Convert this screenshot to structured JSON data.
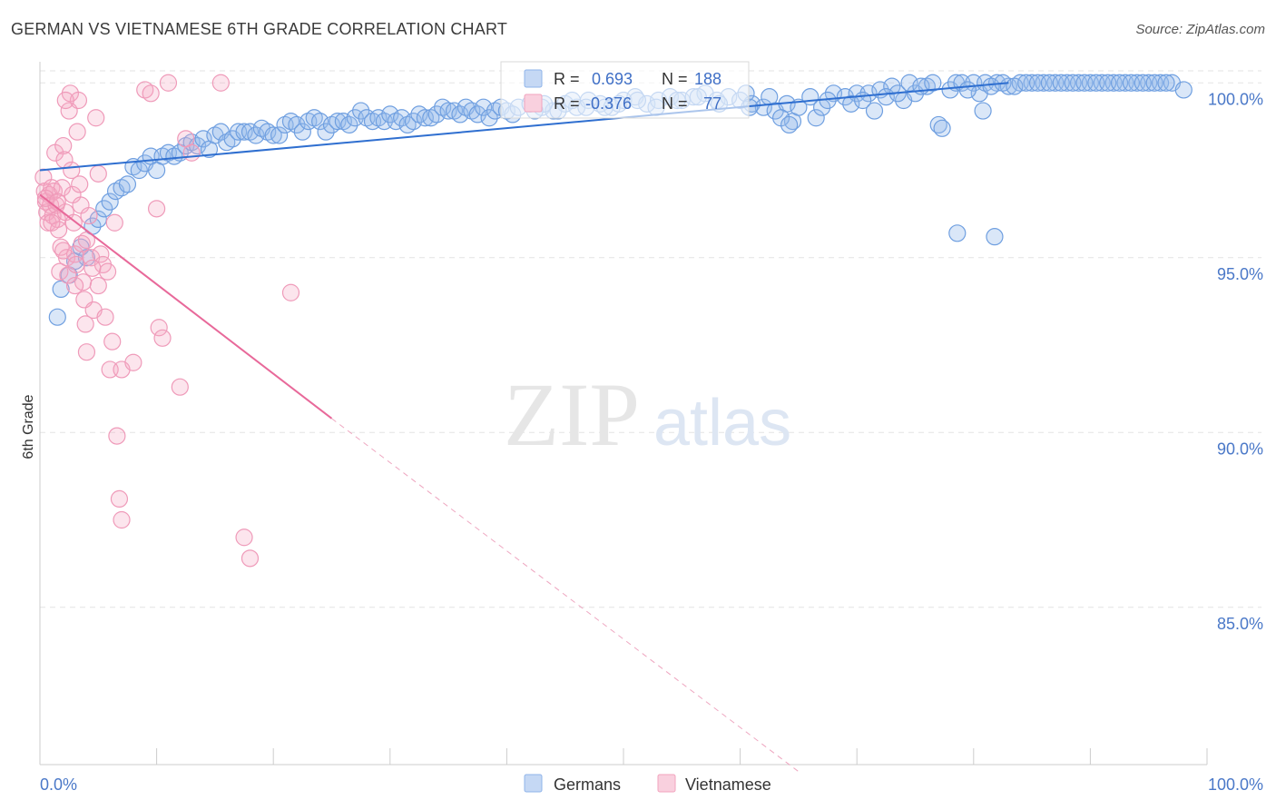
{
  "title": "GERMAN VS VIETNAMESE 6TH GRADE CORRELATION CHART",
  "source": "Source: ZipAtlas.com",
  "watermark": {
    "zip": "ZIP",
    "atlas": "atlas"
  },
  "legend_box": {
    "rows": [
      {
        "r_label": "R =",
        "r_value": "0.693",
        "n_label": "N =",
        "n_value": "188",
        "color": "#8fb4ea"
      },
      {
        "r_label": "R =",
        "r_value": "-0.376",
        "n_label": "N =",
        "n_value": "77",
        "color": "#f2a3bd"
      }
    ]
  },
  "bottom_legend": [
    {
      "label": "Germans",
      "color": "#8fb4ea"
    },
    {
      "label": "Vietnamese",
      "color": "#f2a3bd"
    }
  ],
  "chart_data": {
    "type": "scatter",
    "ylabel": "6th Grade",
    "xlabel": "",
    "xlim": [
      0,
      100
    ],
    "ylim": [
      80.5,
      100.5
    ],
    "x_tick_labels": [
      "0.0%",
      "100.0%"
    ],
    "y_ticks": [
      85,
      90,
      95,
      100
    ],
    "y_tick_labels": [
      "85.0%",
      "90.0%",
      "95.0%",
      "100.0%"
    ],
    "grid": true,
    "series": [
      {
        "name": "Germans",
        "color": "#6a9be0",
        "trend": {
          "x": [
            0,
            83
          ],
          "y": [
            97.5,
            100.0
          ],
          "style": "solid"
        },
        "points": [
          [
            1.5,
            93.3
          ],
          [
            1.8,
            94.1
          ],
          [
            2.5,
            94.5
          ],
          [
            3.0,
            94.9
          ],
          [
            3.5,
            95.3
          ],
          [
            4,
            95.0
          ],
          [
            4.5,
            95.9
          ],
          [
            5,
            96.1
          ],
          [
            5.5,
            96.4
          ],
          [
            6,
            96.6
          ],
          [
            6.5,
            96.9
          ],
          [
            7,
            97.0
          ],
          [
            7.5,
            97.1
          ],
          [
            8,
            97.6
          ],
          [
            8.5,
            97.5
          ],
          [
            9,
            97.7
          ],
          [
            9.5,
            97.9
          ],
          [
            10,
            97.5
          ],
          [
            10.5,
            97.9
          ],
          [
            11,
            98.0
          ],
          [
            11.5,
            97.9
          ],
          [
            12,
            98.0
          ],
          [
            12.5,
            98.2
          ],
          [
            13,
            98.3
          ],
          [
            13.5,
            98.2
          ],
          [
            14,
            98.4
          ],
          [
            14.5,
            98.1
          ],
          [
            15,
            98.5
          ],
          [
            15.5,
            98.6
          ],
          [
            16,
            98.3
          ],
          [
            16.5,
            98.4
          ],
          [
            17,
            98.6
          ],
          [
            17.5,
            98.6
          ],
          [
            18,
            98.6
          ],
          [
            18.5,
            98.5
          ],
          [
            19,
            98.7
          ],
          [
            19.5,
            98.6
          ],
          [
            20,
            98.5
          ],
          [
            20.5,
            98.5
          ],
          [
            21,
            98.8
          ],
          [
            21.5,
            98.9
          ],
          [
            22,
            98.8
          ],
          [
            22.5,
            98.6
          ],
          [
            23,
            98.9
          ],
          [
            23.5,
            99.0
          ],
          [
            24,
            98.9
          ],
          [
            24.5,
            98.6
          ],
          [
            25,
            98.8
          ],
          [
            25.5,
            98.9
          ],
          [
            26,
            98.9
          ],
          [
            26.5,
            98.8
          ],
          [
            27,
            99.0
          ],
          [
            27.5,
            99.2
          ],
          [
            28,
            99.0
          ],
          [
            28.5,
            98.9
          ],
          [
            29,
            99.0
          ],
          [
            29.5,
            98.9
          ],
          [
            30,
            99.1
          ],
          [
            30.5,
            98.9
          ],
          [
            31,
            99.0
          ],
          [
            31.5,
            98.8
          ],
          [
            32,
            98.9
          ],
          [
            32.5,
            99.1
          ],
          [
            33,
            99.0
          ],
          [
            33.5,
            99.0
          ],
          [
            34,
            99.1
          ],
          [
            34.5,
            99.3
          ],
          [
            35,
            99.2
          ],
          [
            35.5,
            99.2
          ],
          [
            36,
            99.1
          ],
          [
            36.5,
            99.3
          ],
          [
            37,
            99.2
          ],
          [
            37.5,
            99.1
          ],
          [
            38,
            99.3
          ],
          [
            38.5,
            99.0
          ],
          [
            39,
            99.2
          ],
          [
            39.5,
            99.3
          ],
          [
            40,
            99.2
          ],
          [
            40.5,
            99.1
          ],
          [
            41,
            99.3
          ],
          [
            42,
            99.4
          ],
          [
            43,
            99.3
          ],
          [
            44,
            99.2
          ],
          [
            45,
            99.4
          ],
          [
            46,
            99.3
          ],
          [
            47,
            99.5
          ],
          [
            48,
            99.4
          ],
          [
            49,
            99.3
          ],
          [
            50,
            99.5
          ],
          [
            51,
            99.6
          ],
          [
            52,
            99.4
          ],
          [
            53,
            99.5
          ],
          [
            54,
            99.6
          ],
          [
            55,
            99.5
          ],
          [
            56,
            99.6
          ],
          [
            57,
            99.7
          ],
          [
            58,
            99.5
          ],
          [
            59,
            99.6
          ],
          [
            60,
            99.5
          ],
          [
            61,
            99.4
          ],
          [
            62,
            99.3
          ],
          [
            63,
            99.2
          ],
          [
            64,
            99.4
          ],
          [
            64.5,
            98.9
          ],
          [
            65,
            99.3
          ],
          [
            66,
            99.6
          ],
          [
            66.5,
            99.0
          ],
          [
            67,
            99.3
          ],
          [
            68,
            99.7
          ],
          [
            69,
            99.6
          ],
          [
            70,
            99.7
          ],
          [
            71,
            99.7
          ],
          [
            72,
            99.8
          ],
          [
            73,
            99.9
          ],
          [
            74,
            99.5
          ],
          [
            75,
            99.7
          ],
          [
            76,
            99.9
          ],
          [
            77,
            98.8
          ],
          [
            77.3,
            98.7
          ],
          [
            78,
            99.8
          ],
          [
            78.5,
            100.0
          ],
          [
            79,
            100.0
          ],
          [
            80,
            100.0
          ],
          [
            80.5,
            99.7
          ],
          [
            81,
            100.0
          ],
          [
            82,
            100.0
          ],
          [
            83,
            99.9
          ],
          [
            84,
            100.0
          ],
          [
            85,
            100.0
          ],
          [
            86,
            100.0
          ],
          [
            87,
            100.0
          ],
          [
            88,
            100.0
          ],
          [
            89,
            100.0
          ],
          [
            90,
            100.0
          ],
          [
            91,
            100.0
          ],
          [
            92,
            100.0
          ],
          [
            93,
            100.0
          ],
          [
            94,
            100.0
          ],
          [
            95,
            100.0
          ],
          [
            96,
            100.0
          ],
          [
            97,
            100.0
          ],
          [
            98,
            99.8
          ],
          [
            60.5,
            99.7
          ],
          [
            62.5,
            99.6
          ],
          [
            63.5,
            99.0
          ],
          [
            67.5,
            99.5
          ],
          [
            69.5,
            99.4
          ],
          [
            70.5,
            99.5
          ],
          [
            71.5,
            99.2
          ],
          [
            72.5,
            99.6
          ],
          [
            73.5,
            99.7
          ],
          [
            74.5,
            100.0
          ],
          [
            75.5,
            99.9
          ],
          [
            76.5,
            100.0
          ],
          [
            79.5,
            99.8
          ],
          [
            81.5,
            99.9
          ],
          [
            82.5,
            100.0
          ],
          [
            83.5,
            99.9
          ],
          [
            84.5,
            100.0
          ],
          [
            85.5,
            100.0
          ],
          [
            86.5,
            100.0
          ],
          [
            87.5,
            100.0
          ],
          [
            88.5,
            100.0
          ],
          [
            89.5,
            100.0
          ],
          [
            90.5,
            100.0
          ],
          [
            91.5,
            100.0
          ],
          [
            92.5,
            100.0
          ],
          [
            93.5,
            100.0
          ],
          [
            94.5,
            100.0
          ],
          [
            95.5,
            100.0
          ],
          [
            96.5,
            100.0
          ],
          [
            81.8,
            95.6
          ],
          [
            78.6,
            95.7
          ],
          [
            80.8,
            99.2
          ],
          [
            64.2,
            98.8
          ],
          [
            60.8,
            99.3
          ],
          [
            58.2,
            99.4
          ],
          [
            56.4,
            99.6
          ],
          [
            54.6,
            99.5
          ],
          [
            52.8,
            99.3
          ],
          [
            51.2,
            99.5
          ],
          [
            49.6,
            99.4
          ],
          [
            48.4,
            99.3
          ],
          [
            46.8,
            99.3
          ],
          [
            45.6,
            99.5
          ],
          [
            44.4,
            99.2
          ],
          [
            43.2,
            99.4
          ],
          [
            42.4,
            99.2
          ]
        ]
      },
      {
        "name": "Vietnamese",
        "color": "#f08bb0",
        "trend": {
          "x": [
            0,
            25
          ],
          "y": [
            96.8,
            90.4
          ],
          "style": "solid",
          "extension": {
            "x": [
              25,
              65
            ],
            "y": [
              90.4,
              80.3
            ],
            "style": "dashed"
          }
        },
        "points": [
          [
            0.3,
            97.3
          ],
          [
            0.4,
            96.9
          ],
          [
            0.5,
            96.6
          ],
          [
            0.6,
            96.3
          ],
          [
            0.7,
            96.0
          ],
          [
            0.8,
            96.8
          ],
          [
            0.9,
            96.5
          ],
          [
            1.0,
            97.0
          ],
          [
            1.1,
            96.2
          ],
          [
            1.2,
            96.9
          ],
          [
            1.3,
            98.0
          ],
          [
            1.4,
            96.5
          ],
          [
            1.5,
            96.1
          ],
          [
            1.6,
            95.8
          ],
          [
            1.7,
            94.6
          ],
          [
            1.8,
            95.3
          ],
          [
            1.9,
            97.0
          ],
          [
            2.0,
            98.2
          ],
          [
            2.1,
            97.8
          ],
          [
            2.2,
            96.3
          ],
          [
            2.3,
            95.0
          ],
          [
            2.4,
            94.5
          ],
          [
            2.5,
            99.2
          ],
          [
            2.6,
            99.7
          ],
          [
            2.7,
            97.5
          ],
          [
            2.8,
            96.8
          ],
          [
            2.9,
            96.0
          ],
          [
            3.0,
            95.1
          ],
          [
            3.1,
            94.8
          ],
          [
            3.2,
            98.6
          ],
          [
            3.3,
            99.5
          ],
          [
            3.4,
            97.1
          ],
          [
            3.5,
            96.5
          ],
          [
            3.6,
            95.4
          ],
          [
            3.7,
            94.3
          ],
          [
            3.8,
            93.8
          ],
          [
            3.9,
            93.1
          ],
          [
            4.0,
            92.3
          ],
          [
            4.2,
            96.2
          ],
          [
            4.4,
            95.0
          ],
          [
            4.6,
            93.5
          ],
          [
            4.8,
            99.0
          ],
          [
            5.0,
            97.4
          ],
          [
            5.2,
            95.1
          ],
          [
            5.4,
            94.8
          ],
          [
            5.6,
            93.3
          ],
          [
            5.8,
            94.6
          ],
          [
            6.0,
            91.8
          ],
          [
            6.2,
            92.6
          ],
          [
            6.4,
            96.0
          ],
          [
            6.6,
            89.9
          ],
          [
            6.8,
            88.1
          ],
          [
            7.0,
            87.5
          ],
          [
            9.0,
            99.8
          ],
          [
            9.5,
            99.7
          ],
          [
            10,
            96.4
          ],
          [
            10.2,
            93.0
          ],
          [
            10.5,
            92.7
          ],
          [
            11,
            100.0
          ],
          [
            12,
            91.3
          ],
          [
            12.5,
            98.4
          ],
          [
            13.0,
            98.0
          ],
          [
            15.5,
            100.0
          ],
          [
            17.5,
            87.0
          ],
          [
            18.0,
            86.4
          ],
          [
            21.5,
            94.0
          ],
          [
            0.5,
            96.7
          ],
          [
            1.0,
            96.0
          ],
          [
            1.5,
            96.6
          ],
          [
            2.0,
            95.2
          ],
          [
            3.0,
            94.2
          ],
          [
            4.0,
            95.5
          ],
          [
            4.5,
            94.7
          ],
          [
            5.0,
            94.2
          ],
          [
            7.0,
            91.8
          ],
          [
            8.0,
            92.0
          ],
          [
            2.2,
            99.5
          ]
        ]
      }
    ]
  }
}
